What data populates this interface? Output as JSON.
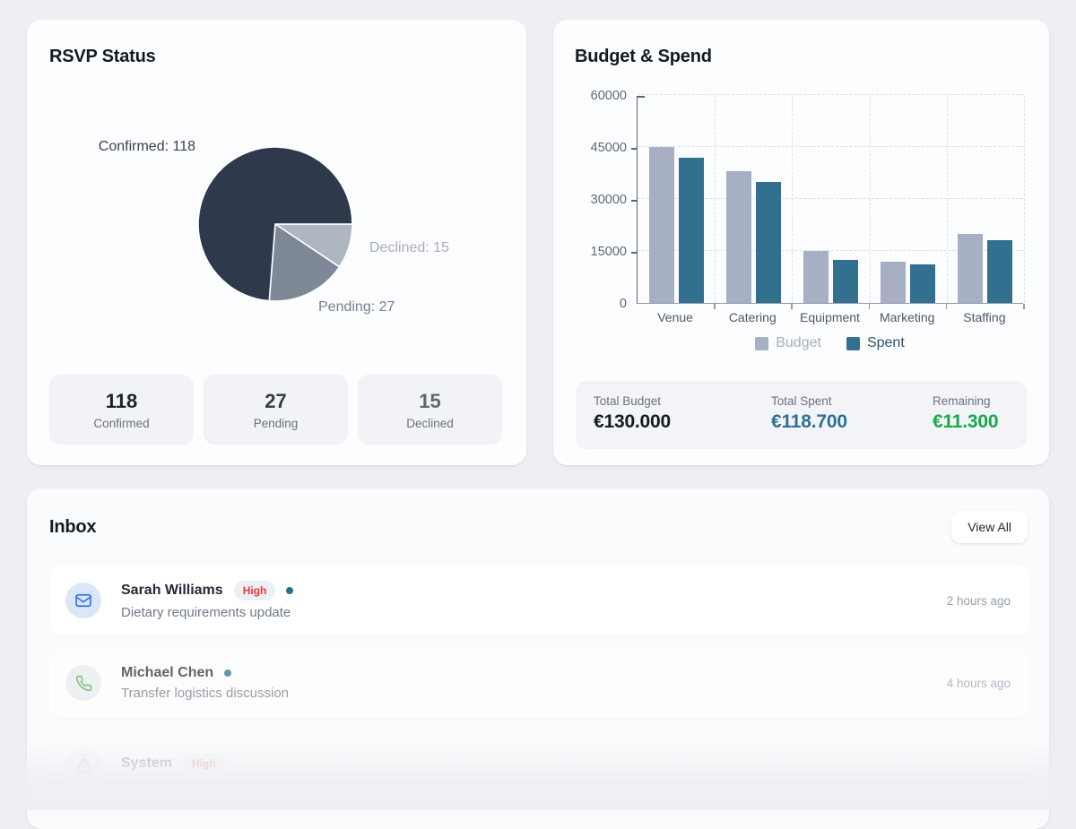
{
  "rsvp_card": {
    "title": "RSVP Status",
    "stats": [
      {
        "value": "118",
        "label": "Confirmed",
        "color": "#1c222c"
      },
      {
        "value": "27",
        "label": "Pending",
        "color": "#333c4a"
      },
      {
        "value": "15",
        "label": "Declined",
        "color": "#5d6673"
      }
    ]
  },
  "budget_card": {
    "title": "Budget & Spend",
    "totals": [
      {
        "label": "Total Budget",
        "value": "€130.000",
        "color": "#141a23"
      },
      {
        "label": "Total Spent",
        "value": "€118.700",
        "color": "#2e7091"
      },
      {
        "label": "Remaining",
        "value": "€11.300",
        "color": "#18a94b"
      }
    ]
  },
  "inbox": {
    "title": "Inbox",
    "view_all_label": "View All",
    "messages": [
      {
        "sender": "Sarah Williams",
        "badge": "High",
        "unread": true,
        "subject": "Dietary requirements update",
        "time": "2 hours ago",
        "icon": "mail-icon",
        "icon_color": "#3b74e0",
        "avatar_bg": "#dbe6f8"
      },
      {
        "sender": "Michael Chen",
        "badge": null,
        "unread": true,
        "subject": "Transfer logistics discussion",
        "time": "4 hours ago",
        "icon": "phone-icon",
        "icon_color": "#4caf50",
        "avatar_bg": "#e9ecef"
      },
      {
        "sender": "System",
        "badge": "High",
        "unread": false,
        "subject": "",
        "time": "",
        "icon": "alert-icon",
        "icon_color": "#aab1bd",
        "avatar_bg": "#eef0f3"
      }
    ]
  },
  "chart_data": [
    {
      "type": "pie",
      "title": "RSVP Status",
      "labels": [
        "Confirmed",
        "Pending",
        "Declined"
      ],
      "values": [
        118,
        27,
        15
      ],
      "colors": [
        "#2e3a4b",
        "#7e8897",
        "#aeb6c2"
      ],
      "start_angle_deg": 0,
      "direction": "clockwise-from-east, slices drawn in order Declined, Pending, Confirmed",
      "annotations": [
        "Confirmed: 118",
        "Pending: 27",
        "Declined: 15"
      ]
    },
    {
      "type": "bar",
      "title": "Budget & Spend",
      "categories": [
        "Venue",
        "Catering",
        "Equipment",
        "Marketing",
        "Staffing"
      ],
      "series": [
        {
          "name": "Budget",
          "color": "#a6afc3",
          "values": [
            45000,
            38000,
            15000,
            12000,
            20000
          ]
        },
        {
          "name": "Spent",
          "color": "#327090",
          "values": [
            42000,
            35000,
            12500,
            11200,
            18000
          ]
        }
      ],
      "ylim": [
        0,
        60000
      ],
      "yticks": [
        0,
        15000,
        30000,
        45000,
        60000
      ],
      "grid": true,
      "legend_position": "bottom"
    }
  ]
}
